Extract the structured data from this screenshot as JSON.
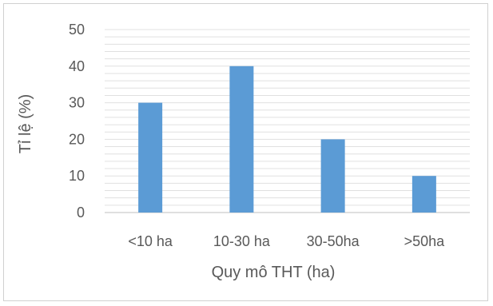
{
  "chart_data": {
    "type": "bar",
    "categories": [
      "<10 ha",
      "10-30 ha",
      "30-50ha",
      ">50ha"
    ],
    "values": [
      30,
      40,
      20,
      10
    ],
    "title": "",
    "xlabel": "Quy mô THT (ha)",
    "ylabel": "Tỉ lệ  (%)",
    "ylim": [
      0,
      50
    ],
    "yticks": [
      0,
      10,
      20,
      30,
      40,
      50
    ],
    "grid": true,
    "legend": "none",
    "colors": {
      "bar": "#5B9BD5",
      "gridline": "#E0E0E0",
      "axis": "#BFBFBF",
      "text": "#595959"
    }
  }
}
